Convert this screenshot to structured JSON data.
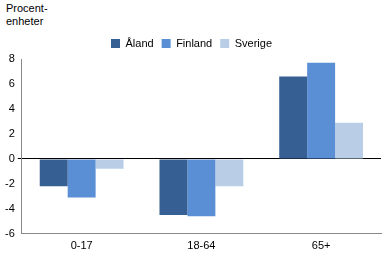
{
  "chart_data": {
    "type": "bar",
    "y_label": "Procent-\nenheter",
    "categories": [
      "0-17",
      "18-64",
      "65+"
    ],
    "series": [
      {
        "name": "Åland",
        "color": "#365f93",
        "values": [
          -2.2,
          -4.5,
          6.6
        ]
      },
      {
        "name": "Finland",
        "color": "#5a8fd6",
        "values": [
          -3.1,
          -4.6,
          7.7
        ]
      },
      {
        "name": "Sverige",
        "color": "#bacde6",
        "values": [
          -0.8,
          -2.2,
          2.9
        ]
      }
    ],
    "ylim": [
      -6,
      8
    ],
    "yticks": [
      -6,
      -4,
      -2,
      0,
      2,
      4,
      6,
      8
    ],
    "grid": false,
    "legend": "top"
  }
}
